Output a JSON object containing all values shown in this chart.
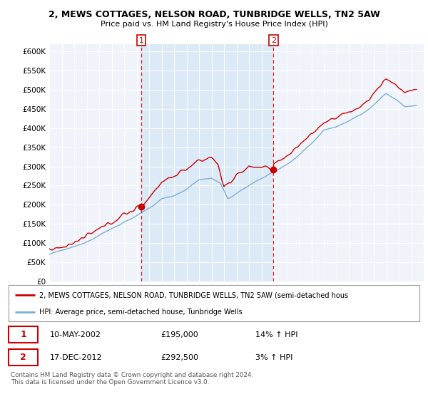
{
  "title": "2, MEWS COTTAGES, NELSON ROAD, TUNBRIDGE WELLS, TN2 5AW",
  "subtitle": "Price paid vs. HM Land Registry's House Price Index (HPI)",
  "ylim": [
    0,
    620000
  ],
  "yticks": [
    0,
    50000,
    100000,
    150000,
    200000,
    250000,
    300000,
    350000,
    400000,
    450000,
    500000,
    550000,
    600000
  ],
  "ytick_labels": [
    "£0",
    "£50K",
    "£100K",
    "£150K",
    "£200K",
    "£250K",
    "£300K",
    "£350K",
    "£400K",
    "£450K",
    "£500K",
    "£550K",
    "£600K"
  ],
  "hpi_color": "#7bafd4",
  "price_color": "#cc0000",
  "bg_color": "#f0f4fa",
  "highlight_color": "#dce9f7",
  "marker1_date": 2002.37,
  "marker1_price": 195000,
  "marker1_label": "1",
  "marker2_date": 2012.96,
  "marker2_price": 292500,
  "marker2_label": "2",
  "legend_line1": "2, MEWS COTTAGES, NELSON ROAD, TUNBRIDGE WELLS, TN2 5AW (semi-detached hous",
  "legend_line2": "HPI: Average price, semi-detached house, Tunbridge Wells",
  "table_row1_date": "10-MAY-2002",
  "table_row1_price": "£195,000",
  "table_row1_hpi": "14% ↑ HPI",
  "table_row2_date": "17-DEC-2012",
  "table_row2_price": "£292,500",
  "table_row2_hpi": "3% ↑ HPI",
  "footer": "Contains HM Land Registry data © Crown copyright and database right 2024.\nThis data is licensed under the Open Government Licence v3.0."
}
